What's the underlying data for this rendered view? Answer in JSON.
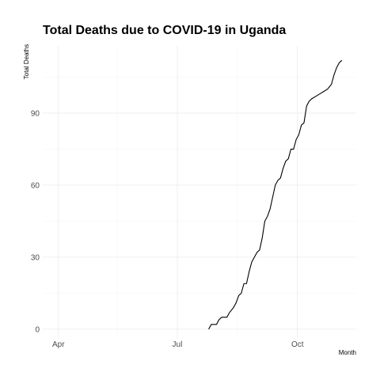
{
  "chart_data": {
    "type": "line",
    "title": "Total Deaths due to COVID-19 in Uganda",
    "xlabel": "Month",
    "ylabel": "Total Deaths",
    "x_range": [
      "2020-03-20",
      "2020-11-15"
    ],
    "ylim": [
      -4,
      118
    ],
    "x_ticks": [
      {
        "date": "2020-04-01",
        "label": "Apr"
      },
      {
        "date": "2020-07-01",
        "label": "Jul"
      },
      {
        "date": "2020-10-01",
        "label": "Oct"
      }
    ],
    "x_minor_ticks": [
      "2020-05-16",
      "2020-08-16"
    ],
    "y_ticks": [
      0,
      30,
      60,
      90
    ],
    "y_minor_ticks": [
      15,
      45,
      75,
      105
    ],
    "grid": true,
    "legend": "none",
    "series": [
      {
        "color": "#000000",
        "x": [
          "2020-07-25",
          "2020-07-27",
          "2020-07-31",
          "2020-08-02",
          "2020-08-04",
          "2020-08-08",
          "2020-08-10",
          "2020-08-13",
          "2020-08-15",
          "2020-08-17",
          "2020-08-19",
          "2020-08-21",
          "2020-08-23",
          "2020-08-25",
          "2020-08-27",
          "2020-08-29",
          "2020-08-31",
          "2020-09-02",
          "2020-09-04",
          "2020-09-06",
          "2020-09-08",
          "2020-09-10",
          "2020-09-12",
          "2020-09-14",
          "2020-09-16",
          "2020-09-18",
          "2020-09-20",
          "2020-09-22",
          "2020-09-24",
          "2020-09-26",
          "2020-09-28",
          "2020-09-30",
          "2020-10-02",
          "2020-10-04",
          "2020-10-06",
          "2020-10-08",
          "2020-10-10",
          "2020-10-12",
          "2020-10-15",
          "2020-10-18",
          "2020-10-21",
          "2020-10-24",
          "2020-10-27",
          "2020-10-29",
          "2020-10-31",
          "2020-11-02",
          "2020-11-04"
        ],
        "y": [
          0,
          2,
          2,
          4,
          5,
          5,
          7,
          9,
          11,
          14,
          15,
          19,
          19,
          24,
          28,
          30,
          32,
          33,
          38,
          45,
          47,
          50,
          55,
          60,
          62,
          63,
          67,
          70,
          71,
          75,
          75,
          79,
          81,
          85,
          86,
          93,
          95,
          96,
          97,
          98,
          99,
          100,
          102,
          106,
          109,
          111,
          112
        ]
      }
    ]
  }
}
